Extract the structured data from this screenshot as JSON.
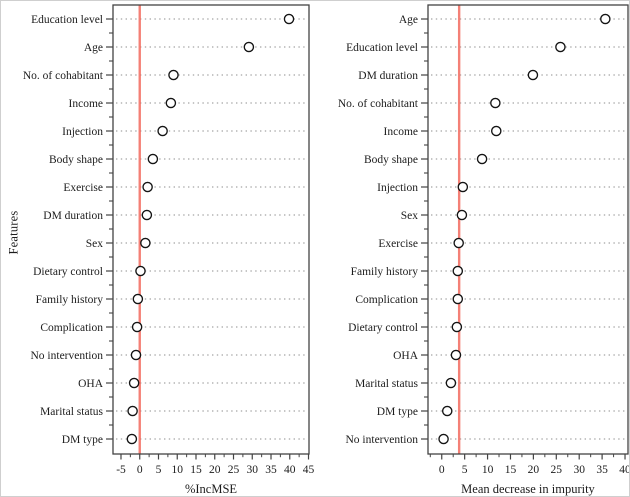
{
  "figure": {
    "background": "#ffffff",
    "frame_color": "#cfcfcf",
    "axis_color": "#434343",
    "text_color": "#1c1c1c",
    "dotted_line_color": "#8d8d8d",
    "reference_line_color": "#f26a5e",
    "marker": "open-circle"
  },
  "chart_data": [
    {
      "type": "scatter",
      "title": "",
      "xlabel": "%IncMSE",
      "ylabel": "Features",
      "categories": [
        "Education level",
        "Age",
        "No. of cohabitant",
        "Income",
        "Injection",
        "Body shape",
        "Exercise",
        "DM duration",
        "Sex",
        "Dietary control",
        "Family history",
        "Complication",
        "No intervention",
        "OHA",
        "Marital status",
        "DM type"
      ],
      "values": [
        39.8,
        29.1,
        9.0,
        8.3,
        6.1,
        3.5,
        2.1,
        1.9,
        1.5,
        0.2,
        -0.5,
        -0.7,
        -1.0,
        -1.5,
        -1.9,
        -2.1
      ],
      "xticks": [
        -5,
        0,
        5,
        10,
        15,
        20,
        25,
        30,
        35,
        40,
        45
      ],
      "minor_tick_step": 2.5,
      "xlim": [
        -7.13,
        45.13
      ],
      "refline_x": 0,
      "grid": "dotted-horizontal",
      "legend": "none"
    },
    {
      "type": "scatter",
      "title": "",
      "xlabel": "Mean decrease in impurity",
      "ylabel": "",
      "categories": [
        "Age",
        "Education level",
        "DM duration",
        "No. of cohabitant",
        "Income",
        "Body shape",
        "Injection",
        "Sex",
        "Exercise",
        "Family history",
        "Complication",
        "Dietary control",
        "OHA",
        "Marital status",
        "DM type",
        "No intervention"
      ],
      "values": [
        35.7,
        25.9,
        19.9,
        11.7,
        11.9,
        8.8,
        4.6,
        4.4,
        3.7,
        3.5,
        3.5,
        3.3,
        3.1,
        2.0,
        1.2,
        0.4
      ],
      "xticks": [
        0,
        5,
        10,
        15,
        20,
        25,
        30,
        35,
        40
      ],
      "minor_tick_step": 2.5,
      "xlim": [
        -3.0,
        40.65
      ],
      "refline_x": 3.8,
      "grid": "dotted-horizontal",
      "legend": "none"
    }
  ]
}
